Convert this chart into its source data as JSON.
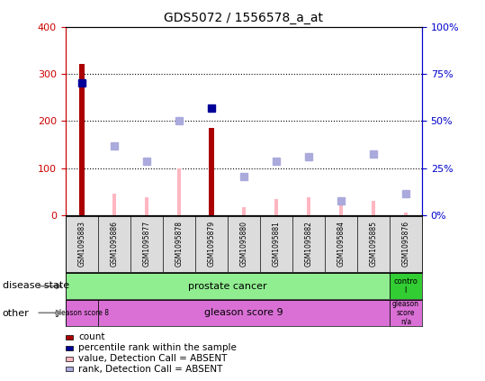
{
  "title": "GDS5072 / 1556578_a_at",
  "samples": [
    "GSM1095883",
    "GSM1095886",
    "GSM1095877",
    "GSM1095878",
    "GSM1095879",
    "GSM1095880",
    "GSM1095881",
    "GSM1095882",
    "GSM1095884",
    "GSM1095885",
    "GSM1095876"
  ],
  "count_values": [
    320,
    0,
    0,
    0,
    185,
    0,
    0,
    0,
    0,
    0,
    0
  ],
  "percentile_values": [
    280,
    0,
    0,
    0,
    228,
    0,
    0,
    0,
    0,
    0,
    0
  ],
  "value_absent": [
    0,
    45,
    38,
    100,
    0,
    18,
    35,
    38,
    30,
    30,
    5
  ],
  "rank_absent": [
    0,
    148,
    115,
    200,
    0,
    82,
    115,
    125,
    30,
    130,
    45
  ],
  "ylim_left": [
    0,
    400
  ],
  "ylim_right": [
    0,
    100
  ],
  "yticks_left": [
    0,
    100,
    200,
    300,
    400
  ],
  "yticks_right": [
    0,
    25,
    50,
    75,
    100
  ],
  "ytick_right_labels": [
    "0%",
    "25%",
    "50%",
    "75%",
    "100%"
  ],
  "disease_state_prostate_color": "#90EE90",
  "disease_state_control_color": "#32CD32",
  "gleason_color": "#DA70D6",
  "bar_color_count": "#AA0000",
  "bar_color_percentile": "#000099",
  "bar_color_value_absent": "#FFB6C1",
  "bar_color_rank_absent": "#AAAADD",
  "left_axis_color": "#CC0000",
  "right_axis_color": "#0000CC",
  "bg_color": "#DCDCDC",
  "legend_items": [
    "count",
    "percentile rank within the sample",
    "value, Detection Call = ABSENT",
    "rank, Detection Call = ABSENT"
  ],
  "legend_colors": [
    "#AA0000",
    "#000099",
    "#FFB6C1",
    "#AAAADD"
  ]
}
